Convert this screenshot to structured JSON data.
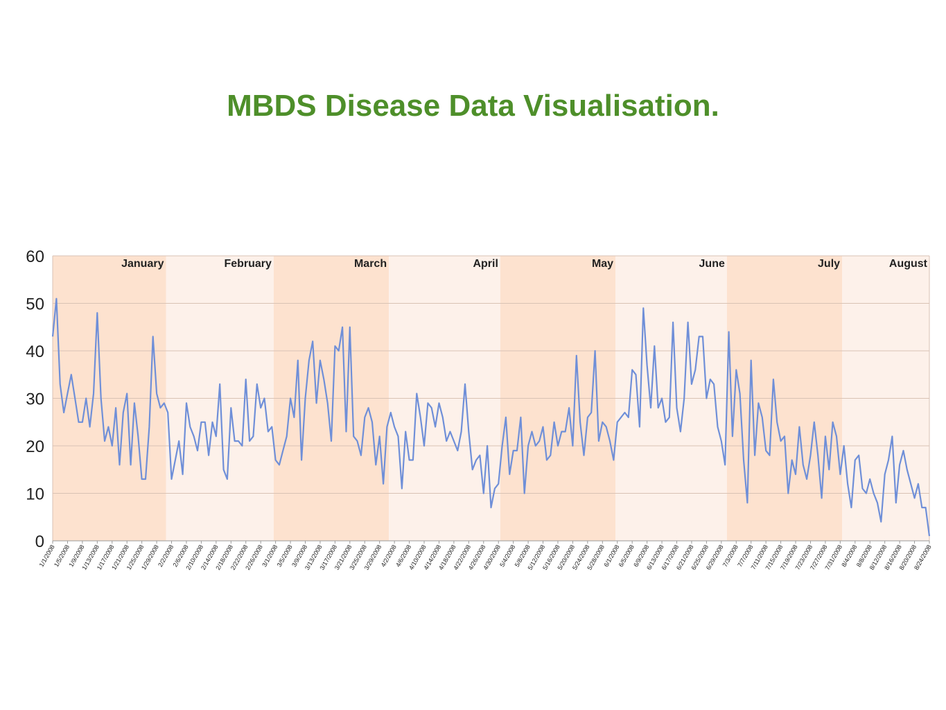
{
  "title": "MBDS Disease Data Visualisation.",
  "colors": {
    "title": "#4e8f2a",
    "line": "#6f8fd8",
    "band_dark": "#fde2cf",
    "band_light": "#fdf1ea",
    "grid": "#d9c2b4"
  },
  "chart_data": {
    "type": "line",
    "title": "",
    "xlabel": "",
    "ylabel": "",
    "ylim": [
      0,
      60
    ],
    "yticks": [
      0,
      10,
      20,
      30,
      40,
      50,
      60
    ],
    "grid": true,
    "legend": "none",
    "months": [
      {
        "name": "January",
        "start": "1/1/2008",
        "end": "1/31/2008",
        "shade": "dark"
      },
      {
        "name": "February",
        "start": "2/1/2008",
        "end": "2/29/2008",
        "shade": "light"
      },
      {
        "name": "March",
        "start": "3/1/2008",
        "end": "3/31/2008",
        "shade": "dark"
      },
      {
        "name": "April",
        "start": "4/1/2008",
        "end": "4/30/2008",
        "shade": "light"
      },
      {
        "name": "May",
        "start": "5/1/2008",
        "end": "5/31/2008",
        "shade": "dark"
      },
      {
        "name": "June",
        "start": "6/1/2008",
        "end": "6/30/2008",
        "shade": "light"
      },
      {
        "name": "July",
        "start": "7/1/2008",
        "end": "7/31/2008",
        "shade": "dark"
      },
      {
        "name": "August",
        "start": "8/1/2008",
        "end": "8/24/2008",
        "shade": "light"
      }
    ],
    "x_tick_labels": [
      "1/1/2008",
      "1/5/2008",
      "1/9/2008",
      "1/13/2008",
      "1/17/2008",
      "1/21/2008",
      "1/25/2008",
      "1/29/2008",
      "2/2/2008",
      "2/6/2008",
      "2/10/2008",
      "2/14/2008",
      "2/18/2008",
      "2/22/2008",
      "2/26/2008",
      "3/1/2008",
      "3/5/2008",
      "3/9/2008",
      "3/13/2008",
      "3/17/2008",
      "3/21/2008",
      "3/25/2008",
      "3/29/2008",
      "4/2/2008",
      "4/6/2008",
      "4/10/2008",
      "4/14/2008",
      "4/18/2008",
      "4/22/2008",
      "4/26/2008",
      "4/30/2008",
      "5/4/2008",
      "5/8/2008",
      "5/12/2008",
      "5/16/2008",
      "5/20/2008",
      "5/24/2008",
      "5/28/2008",
      "6/1/2008",
      "6/5/2008",
      "6/9/2008",
      "6/13/2008",
      "6/17/2008",
      "6/21/2008",
      "6/25/2008",
      "6/29/2008",
      "7/3/2008",
      "7/7/2008",
      "7/11/2008",
      "7/15/2008",
      "7/19/2008",
      "7/23/2008",
      "7/27/2008",
      "7/31/2008",
      "8/4/2008",
      "8/8/2008",
      "8/12/2008",
      "8/16/2008",
      "8/20/2008",
      "8/24/2008"
    ],
    "x_start": "1/1/2008",
    "x_end": "8/24/2008",
    "series": [
      {
        "values": [
          43,
          51,
          33,
          27,
          31,
          35,
          30,
          25,
          25,
          30,
          24,
          31,
          48,
          30,
          21,
          24,
          20,
          28,
          16,
          27,
          31,
          16,
          29,
          22,
          13,
          13,
          24,
          43,
          31,
          28,
          29,
          27,
          13,
          17,
          21,
          14,
          29,
          24,
          22,
          19,
          25,
          25,
          18,
          25,
          22,
          33,
          15,
          13,
          28,
          21,
          21,
          20,
          34,
          21,
          22,
          33,
          28,
          30,
          23,
          24,
          17,
          16,
          19,
          22,
          30,
          26,
          38,
          17,
          30,
          38,
          42,
          29,
          38,
          34,
          29,
          21,
          41,
          40,
          45,
          23,
          45,
          22,
          21,
          18,
          26,
          28,
          25,
          16,
          22,
          12,
          24,
          27,
          24,
          22,
          11,
          23,
          17,
          17,
          31,
          26,
          20,
          29,
          28,
          24,
          29,
          26,
          21,
          23,
          21,
          19,
          23,
          33,
          23,
          15,
          17,
          18,
          10,
          20,
          7,
          11,
          12,
          20,
          26,
          14,
          19,
          19,
          26,
          10,
          20,
          23,
          20,
          21,
          24,
          17,
          18,
          25,
          20,
          23,
          23,
          28,
          20,
          39,
          25,
          18,
          26,
          27,
          40,
          21,
          25,
          24,
          21,
          17,
          25,
          26,
          27,
          26,
          36,
          35,
          24,
          49,
          37,
          28,
          41,
          28,
          30,
          25,
          26,
          46,
          28,
          23,
          30,
          46,
          33,
          36,
          43,
          43,
          30,
          34,
          33,
          24,
          21,
          16,
          44,
          22,
          36,
          31,
          17,
          8,
          38,
          18,
          29,
          26,
          19,
          18,
          34,
          25,
          21,
          22,
          10,
          17,
          14,
          24,
          16,
          13,
          18,
          25,
          18,
          9,
          22,
          15,
          25,
          22,
          14,
          20,
          12,
          7,
          17,
          18,
          11,
          10,
          13,
          10,
          8,
          4,
          14,
          17,
          22,
          8,
          16,
          19,
          15,
          12,
          9,
          12,
          7,
          7,
          1
        ]
      }
    ]
  }
}
